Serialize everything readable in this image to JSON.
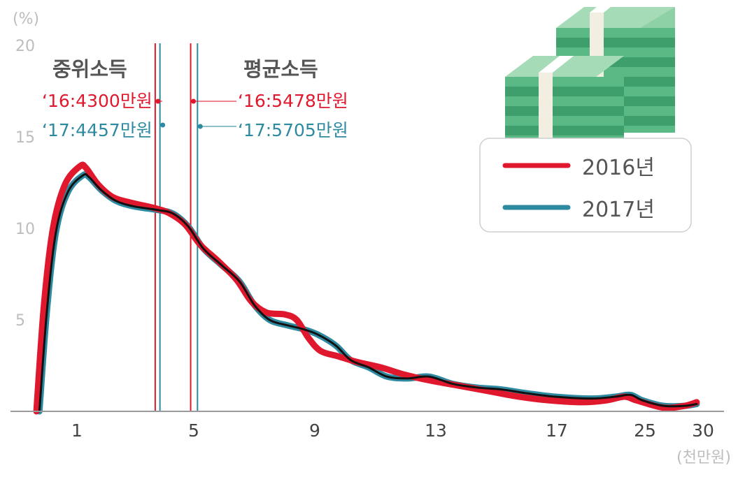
{
  "chart_data": {
    "type": "line",
    "y_unit": "(%)",
    "x_unit": "(천만원)",
    "ylim": [
      0,
      20
    ],
    "y_ticks": [
      "5",
      "10",
      "15",
      "20"
    ],
    "x_ticks": [
      "1",
      "5",
      "9",
      "13",
      "17",
      "25",
      "30"
    ],
    "legend_position": "top-right",
    "series": [
      {
        "name": "2016년",
        "color": "#e0182d",
        "points": [
          [
            0.35,
            0.0
          ],
          [
            0.6,
            5.8
          ],
          [
            0.9,
            10.0
          ],
          [
            1.3,
            12.4
          ],
          [
            1.8,
            13.4
          ],
          [
            2.0,
            13.3
          ],
          [
            2.4,
            12.4
          ],
          [
            2.9,
            11.7
          ],
          [
            3.5,
            11.4
          ],
          [
            4.3,
            11.1
          ],
          [
            4.8,
            10.8
          ],
          [
            5.3,
            10.2
          ],
          [
            5.8,
            9.1
          ],
          [
            6.4,
            8.2
          ],
          [
            7.0,
            7.2
          ],
          [
            7.5,
            6.0
          ],
          [
            8.0,
            5.4
          ],
          [
            8.6,
            5.3
          ],
          [
            9.0,
            5.0
          ],
          [
            9.4,
            4.0
          ],
          [
            9.8,
            3.3
          ],
          [
            10.4,
            3.0
          ],
          [
            11.0,
            2.7
          ],
          [
            11.8,
            2.4
          ],
          [
            12.6,
            2.0
          ],
          [
            13.4,
            1.7
          ],
          [
            14.4,
            1.4
          ],
          [
            15.4,
            1.1
          ],
          [
            16.4,
            0.8
          ],
          [
            17.4,
            0.6
          ],
          [
            18.5,
            0.5
          ],
          [
            19.3,
            0.6
          ],
          [
            19.9,
            0.8
          ],
          [
            20.3,
            0.6
          ],
          [
            21.2,
            0.2
          ],
          [
            21.9,
            0.3
          ],
          [
            22.3,
            0.5
          ]
        ]
      },
      {
        "name": "2017년",
        "color": "#2e8aa0",
        "points": [
          [
            0.45,
            0.0
          ],
          [
            0.7,
            5.5
          ],
          [
            1.0,
            9.8
          ],
          [
            1.4,
            12.0
          ],
          [
            1.9,
            12.9
          ],
          [
            2.1,
            12.8
          ],
          [
            2.5,
            12.1
          ],
          [
            3.0,
            11.5
          ],
          [
            3.6,
            11.2
          ],
          [
            4.4,
            11.0
          ],
          [
            4.9,
            10.8
          ],
          [
            5.4,
            10.1
          ],
          [
            5.9,
            8.9
          ],
          [
            6.5,
            8.0
          ],
          [
            7.1,
            7.1
          ],
          [
            7.6,
            5.8
          ],
          [
            8.1,
            5.0
          ],
          [
            8.7,
            4.7
          ],
          [
            9.2,
            4.5
          ],
          [
            9.7,
            4.2
          ],
          [
            10.3,
            3.6
          ],
          [
            10.8,
            2.8
          ],
          [
            11.4,
            2.4
          ],
          [
            12.0,
            1.9
          ],
          [
            12.7,
            1.8
          ],
          [
            13.4,
            1.9
          ],
          [
            14.2,
            1.5
          ],
          [
            15.0,
            1.3
          ],
          [
            15.8,
            1.2
          ],
          [
            16.6,
            1.0
          ],
          [
            17.6,
            0.8
          ],
          [
            18.8,
            0.7
          ],
          [
            19.6,
            0.8
          ],
          [
            20.1,
            0.9
          ],
          [
            20.5,
            0.6
          ],
          [
            21.2,
            0.3
          ],
          [
            21.9,
            0.3
          ],
          [
            22.3,
            0.4
          ]
        ]
      }
    ],
    "black_overlay_color": "#111111",
    "median": {
      "title": "중위소득",
      "label_2016": "‘16:4300만원",
      "label_2017": "‘17:4457만원",
      "x_2016": 4.3,
      "x_2017": 4.457
    },
    "mean": {
      "title": "평균소득",
      "label_2016": "‘16:5478만원",
      "label_2017": "‘17:5705만원",
      "x_2016": 5.478,
      "x_2017": 5.705
    },
    "colors": {
      "red": "#e0182d",
      "teal": "#2e8aa0",
      "axis_label": "#bdbdbd",
      "x_tick": "#444444",
      "section_title": "#555555"
    },
    "money_icon": "money-stack-icon"
  }
}
